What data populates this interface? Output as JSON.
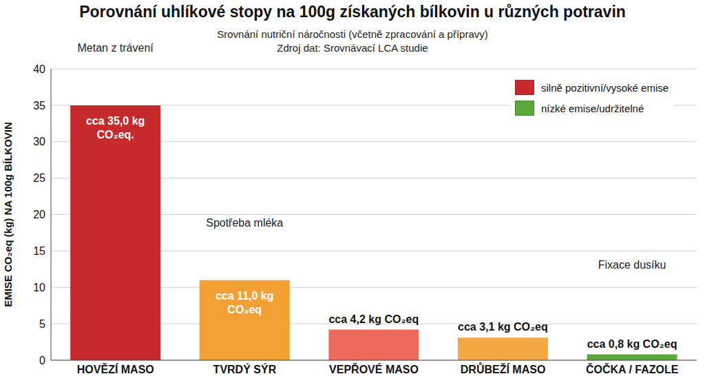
{
  "chart_data": {
    "type": "bar",
    "title": "Porovnání uhlíkové stopy na 100g získaných bílkovin u různých potravin",
    "subtitle": [
      "Srovnání nutriční náročnosti (včetně zpracování a přípravy)",
      "Zdroj dat: Srovnávací LCA studie"
    ],
    "ylabel": "EMISE CO₂eq (kg) NA 100g BÍLKOVIN",
    "categories": [
      "HOVĚZÍ MASO",
      "TVRDÝ SÝR",
      "VEPŘOVÉ MASO",
      "DRŮBEŽÍ MASO",
      "ČOČKA / FAZOLE"
    ],
    "values": [
      35.0,
      11.0,
      4.2,
      3.1,
      0.8
    ],
    "value_labels": [
      "cca 35,0 kg CO₂eq.",
      "cca 11,0 kg CO₂eq",
      "cca 4,2 kg CO₂eq",
      "cca 3,1 kg CO₂eq",
      "cca 0,8 kg CO₂eq"
    ],
    "colors": [
      "#c62a2d",
      "#f2a033",
      "#ee6b5c",
      "#f4a843",
      "#5aa83a"
    ],
    "ylim": [
      0,
      40
    ],
    "yticks": [
      0,
      5,
      10,
      15,
      20,
      25,
      30,
      35,
      40
    ],
    "grid": true,
    "data_labels": true,
    "legend": "upper right",
    "legend_entries": [
      {
        "label": "silně pozitivní/vysoké emise",
        "color": "#c62a2d"
      },
      {
        "label": "nízké emise/udržitelné",
        "color": "#5aa83a"
      }
    ],
    "annotations": [
      {
        "category": "HOVĚZÍ MASO",
        "text": "Metan z trávení"
      },
      {
        "category": "TVRDÝ SÝR",
        "text": "Spotřeba mléka"
      },
      {
        "category": "ČOČKA / FAZOLE",
        "text": "Fixace dusíku"
      }
    ]
  }
}
